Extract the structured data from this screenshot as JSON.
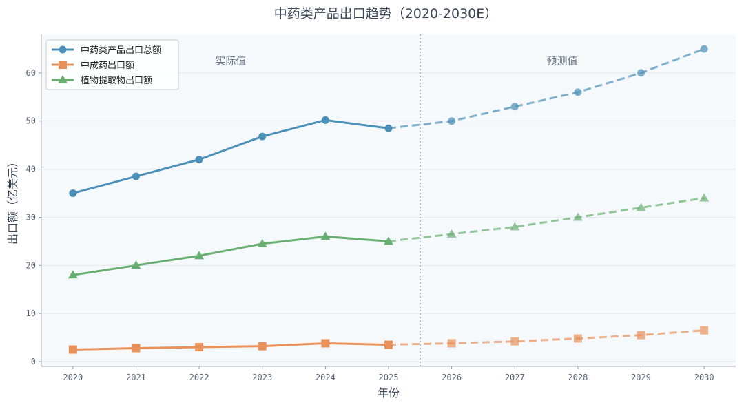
{
  "chart_data": {
    "type": "line",
    "title": "中药类产品出口趋势（2020-2030E）",
    "xlabel": "年份",
    "ylabel": "出口额（亿美元）",
    "x": [
      2020,
      2021,
      2022,
      2023,
      2024,
      2025,
      2026,
      2027,
      2028,
      2029,
      2030
    ],
    "xlim": [
      2019.5,
      2030.5
    ],
    "ylim": [
      -1,
      68
    ],
    "yticks": [
      0,
      10,
      20,
      30,
      40,
      50,
      60
    ],
    "split_x": 2025.5,
    "actual_label": "实际值",
    "forecast_label": "预测值",
    "grid": true,
    "legend_position": "top-left",
    "series": [
      {
        "name": "中药类产品出口总额",
        "color": "#4a90b8",
        "marker": "circle",
        "values": [
          35,
          38.5,
          42,
          46.8,
          50.2,
          48.5,
          50,
          53,
          56,
          60,
          65
        ]
      },
      {
        "name": "中成药出口额",
        "color": "#e8915a",
        "marker": "square",
        "values": [
          2.5,
          2.8,
          3.0,
          3.2,
          3.8,
          3.5,
          3.8,
          4.2,
          4.8,
          5.5,
          6.5
        ]
      },
      {
        "name": "植物提取物出口额",
        "color": "#6aaf72",
        "marker": "triangle",
        "values": [
          18,
          20,
          22,
          24.5,
          26,
          25,
          26.5,
          28,
          30,
          32,
          34
        ]
      }
    ],
    "actual_range": [
      2020,
      2025
    ],
    "forecast_range": [
      2025,
      2030
    ]
  }
}
